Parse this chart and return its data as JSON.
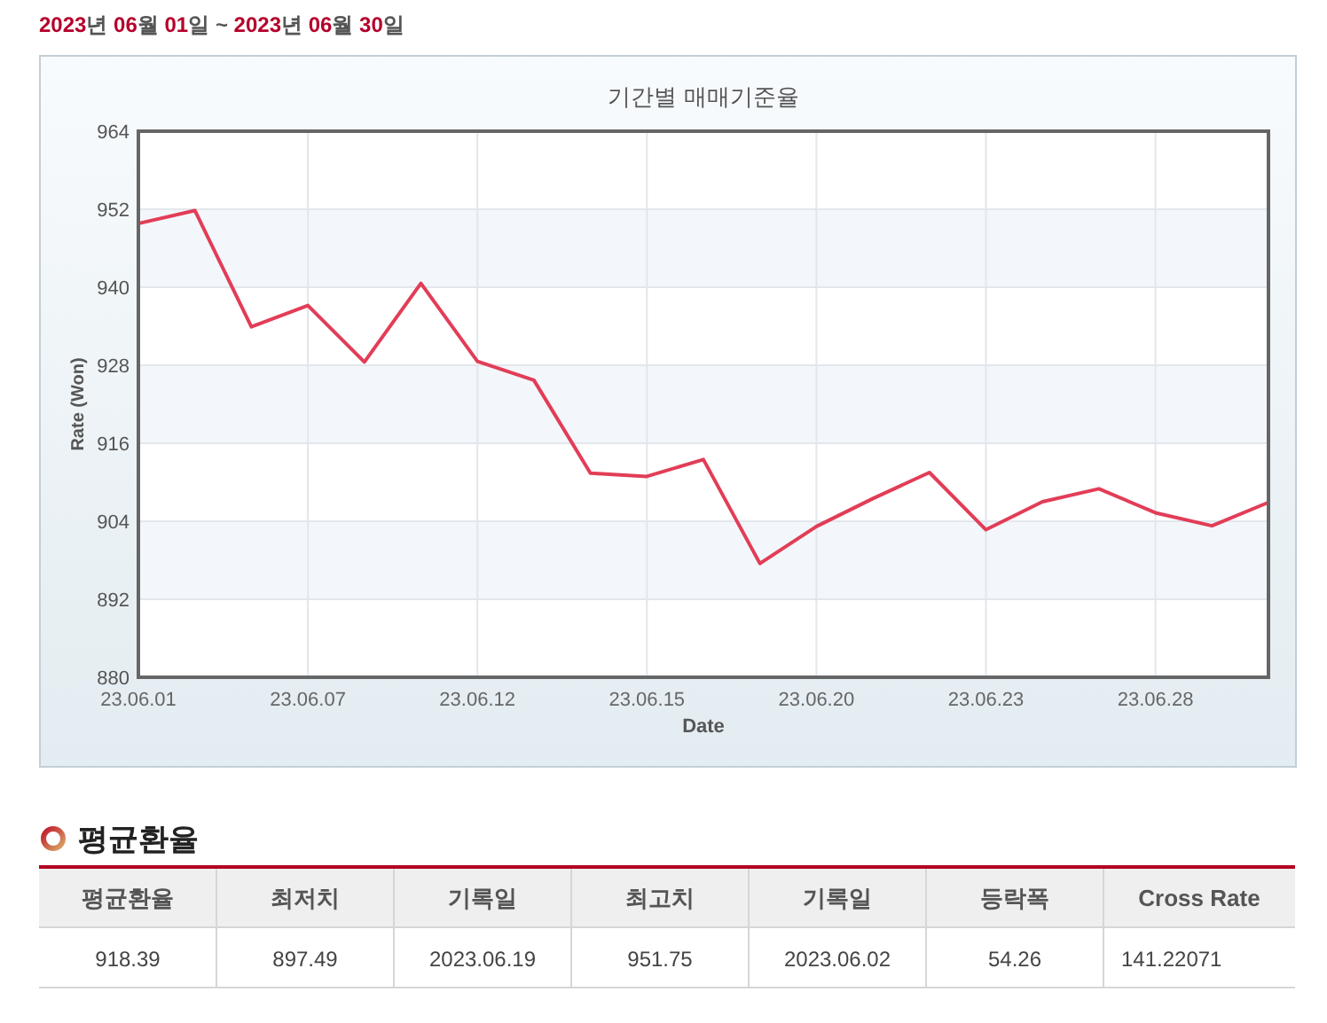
{
  "chart_data": [
    {
      "type": "line",
      "title": "기간별 매매기준율",
      "xlabel": "Date",
      "ylabel": "Rate (Won)",
      "categories": [
        "23.06.01",
        null,
        null,
        "23.06.07",
        null,
        null,
        "23.06.12",
        null,
        null,
        "23.06.15",
        null,
        null,
        "23.06.20",
        null,
        null,
        "23.06.23",
        null,
        null,
        "23.06.28",
        null,
        null
      ],
      "values": [
        949.8,
        951.8,
        933.9,
        937.2,
        928.5,
        940.6,
        928.6,
        925.7,
        911.4,
        910.9,
        913.5,
        897.5,
        903.2,
        907.5,
        911.5,
        902.7,
        907.0,
        909.0,
        905.3,
        903.3,
        906.9
      ],
      "color": "#e23d57",
      "ylim": [
        880,
        964
      ],
      "yticks": [
        880,
        892,
        904,
        916,
        928,
        940,
        952,
        964
      ],
      "grid": true,
      "marker": "none",
      "line_style": "solid",
      "annotations": [
        "2023년 06월 01일 ~ 2023년 06월 30일"
      ]
    },
    {
      "type": "other",
      "title": "평균환율",
      "annotations": [
        "평균환율",
        "최저치",
        "기록일",
        "최고치",
        "기록일",
        "등락폭",
        "Cross Rate",
        "918.39",
        "897.49",
        "2023.06.19",
        "951.75",
        "2023.06.02",
        "54.26",
        "141.22071"
      ]
    }
  ]
}
